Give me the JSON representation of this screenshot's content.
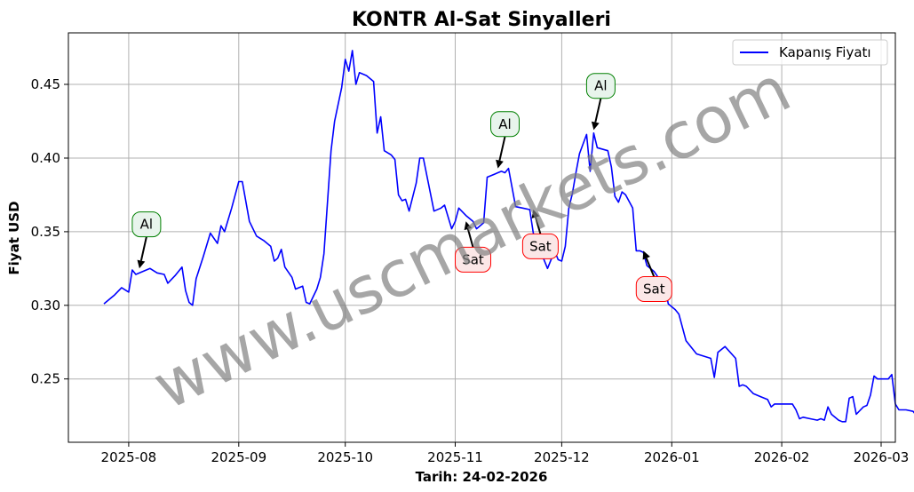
{
  "chart_data": {
    "type": "line",
    "title": "KONTR Al-Sat Sinyalleri",
    "xlabel": "Tarih: 24-02-2026",
    "ylabel": "Fiyat USD",
    "legend": {
      "position": "top-right",
      "entries": [
        "Kapanış Fiyatı"
      ]
    },
    "grid": true,
    "xlim": [
      "2025-07-15",
      "2026-03-05"
    ],
    "ylim": [
      0.207,
      0.485
    ],
    "x_ticks": [
      "2025-08-01",
      "2025-09-01",
      "2025-10-01",
      "2025-11-01",
      "2025-12-01",
      "2026-01-01",
      "2026-02-01",
      "2026-03-01"
    ],
    "x_tick_labels": [
      "2025-08",
      "2025-09",
      "2025-10",
      "2025-11",
      "2025-12",
      "2026-01",
      "2026-02",
      "2026-03"
    ],
    "y_ticks": [
      0.25,
      0.3,
      0.35,
      0.4,
      0.45
    ],
    "y_tick_labels": [
      "0.25",
      "0.30",
      "0.35",
      "0.40",
      "0.45"
    ],
    "series": [
      {
        "name": "Kapanış Fiyatı",
        "color": "#0000ff",
        "points": [
          [
            "2025-07-25",
            0.301
          ],
          [
            "2025-07-28",
            0.307
          ],
          [
            "2025-07-30",
            0.312
          ],
          [
            "2025-08-01",
            0.309
          ],
          [
            "2025-08-02",
            0.324
          ],
          [
            "2025-08-03",
            0.321
          ],
          [
            "2025-08-05",
            0.323
          ],
          [
            "2025-08-07",
            0.325
          ],
          [
            "2025-08-09",
            0.322
          ],
          [
            "2025-08-11",
            0.321
          ],
          [
            "2025-08-12",
            0.315
          ],
          [
            "2025-08-14",
            0.32
          ],
          [
            "2025-08-16",
            0.326
          ],
          [
            "2025-08-17",
            0.31
          ],
          [
            "2025-08-18",
            0.302
          ],
          [
            "2025-08-19",
            0.3
          ],
          [
            "2025-08-20",
            0.318
          ],
          [
            "2025-08-22",
            0.333
          ],
          [
            "2025-08-24",
            0.349
          ],
          [
            "2025-08-26",
            0.342
          ],
          [
            "2025-08-27",
            0.354
          ],
          [
            "2025-08-28",
            0.35
          ],
          [
            "2025-08-30",
            0.366
          ],
          [
            "2025-09-01",
            0.384
          ],
          [
            "2025-09-02",
            0.384
          ],
          [
            "2025-09-04",
            0.357
          ],
          [
            "2025-09-06",
            0.347
          ],
          [
            "2025-09-08",
            0.344
          ],
          [
            "2025-09-10",
            0.34
          ],
          [
            "2025-09-11",
            0.33
          ],
          [
            "2025-09-12",
            0.332
          ],
          [
            "2025-09-13",
            0.338
          ],
          [
            "2025-09-14",
            0.326
          ],
          [
            "2025-09-16",
            0.319
          ],
          [
            "2025-09-17",
            0.311
          ],
          [
            "2025-09-19",
            0.313
          ],
          [
            "2025-09-20",
            0.302
          ],
          [
            "2025-09-21",
            0.301
          ],
          [
            "2025-09-23",
            0.311
          ],
          [
            "2025-09-24",
            0.319
          ],
          [
            "2025-09-25",
            0.335
          ],
          [
            "2025-09-27",
            0.405
          ],
          [
            "2025-09-28",
            0.425
          ],
          [
            "2025-09-30",
            0.448
          ],
          [
            "2025-10-01",
            0.467
          ],
          [
            "2025-10-02",
            0.459
          ],
          [
            "2025-10-03",
            0.473
          ],
          [
            "2025-10-04",
            0.45
          ],
          [
            "2025-10-05",
            0.458
          ],
          [
            "2025-10-07",
            0.456
          ],
          [
            "2025-10-09",
            0.452
          ],
          [
            "2025-10-10",
            0.417
          ],
          [
            "2025-10-11",
            0.428
          ],
          [
            "2025-10-12",
            0.405
          ],
          [
            "2025-10-14",
            0.402
          ],
          [
            "2025-10-15",
            0.399
          ],
          [
            "2025-10-16",
            0.375
          ],
          [
            "2025-10-17",
            0.371
          ],
          [
            "2025-10-18",
            0.372
          ],
          [
            "2025-10-19",
            0.364
          ],
          [
            "2025-10-21",
            0.383
          ],
          [
            "2025-10-22",
            0.4
          ],
          [
            "2025-10-23",
            0.4
          ],
          [
            "2025-10-24",
            0.388
          ],
          [
            "2025-10-26",
            0.364
          ],
          [
            "2025-10-28",
            0.366
          ],
          [
            "2025-10-29",
            0.368
          ],
          [
            "2025-10-31",
            0.352
          ],
          [
            "2025-11-01",
            0.357
          ],
          [
            "2025-11-02",
            0.366
          ],
          [
            "2025-11-04",
            0.361
          ],
          [
            "2025-11-06",
            0.357
          ],
          [
            "2025-11-07",
            0.352
          ],
          [
            "2025-11-09",
            0.356
          ],
          [
            "2025-11-10",
            0.387
          ],
          [
            "2025-11-12",
            0.389
          ],
          [
            "2025-11-13",
            0.39
          ],
          [
            "2025-11-14",
            0.391
          ],
          [
            "2025-11-15",
            0.39
          ],
          [
            "2025-11-16",
            0.393
          ],
          [
            "2025-11-17",
            0.38
          ],
          [
            "2025-11-18",
            0.367
          ],
          [
            "2025-11-20",
            0.366
          ],
          [
            "2025-11-22",
            0.365
          ],
          [
            "2025-11-23",
            0.349
          ],
          [
            "2025-11-24",
            0.344
          ],
          [
            "2025-11-25",
            0.337
          ],
          [
            "2025-11-27",
            0.325
          ],
          [
            "2025-11-28",
            0.331
          ],
          [
            "2025-11-29",
            0.337
          ],
          [
            "2025-11-30",
            0.331
          ],
          [
            "2025-12-01",
            0.33
          ],
          [
            "2025-12-02",
            0.34
          ],
          [
            "2025-12-03",
            0.366
          ],
          [
            "2025-12-04",
            0.376
          ],
          [
            "2025-12-05",
            0.39
          ],
          [
            "2025-12-06",
            0.403
          ],
          [
            "2025-12-08",
            0.416
          ],
          [
            "2025-12-09",
            0.391
          ],
          [
            "2025-12-10",
            0.417
          ],
          [
            "2025-12-11",
            0.407
          ],
          [
            "2025-12-14",
            0.405
          ],
          [
            "2025-12-15",
            0.394
          ],
          [
            "2025-12-16",
            0.374
          ],
          [
            "2025-12-17",
            0.37
          ],
          [
            "2025-12-18",
            0.377
          ],
          [
            "2025-12-19",
            0.375
          ],
          [
            "2025-12-21",
            0.366
          ],
          [
            "2025-12-22",
            0.337
          ],
          [
            "2025-12-23",
            0.337
          ],
          [
            "2025-12-24",
            0.336
          ],
          [
            "2025-12-25",
            0.327
          ],
          [
            "2025-12-27",
            0.323
          ],
          [
            "2025-12-29",
            0.316
          ],
          [
            "2025-12-30",
            0.315
          ],
          [
            "2025-12-31",
            0.301
          ],
          [
            "2026-01-02",
            0.297
          ],
          [
            "2026-01-03",
            0.294
          ],
          [
            "2026-01-05",
            0.276
          ],
          [
            "2026-01-08",
            0.267
          ],
          [
            "2026-01-12",
            0.264
          ],
          [
            "2026-01-13",
            0.251
          ],
          [
            "2026-01-14",
            0.268
          ],
          [
            "2026-01-16",
            0.272
          ],
          [
            "2026-01-19",
            0.264
          ],
          [
            "2026-01-20",
            0.245
          ],
          [
            "2026-01-21",
            0.246
          ],
          [
            "2026-01-22",
            0.245
          ],
          [
            "2026-01-24",
            0.24
          ],
          [
            "2026-01-26",
            0.238
          ],
          [
            "2026-01-28",
            0.236
          ],
          [
            "2026-01-29",
            0.231
          ],
          [
            "2026-01-30",
            0.233
          ],
          [
            "2026-01-31",
            0.233
          ],
          [
            "2026-02-02",
            0.233
          ],
          [
            "2026-02-04",
            0.233
          ],
          [
            "2026-02-05",
            0.229
          ],
          [
            "2026-02-06",
            0.223
          ],
          [
            "2026-02-07",
            0.224
          ],
          [
            "2026-02-09",
            0.223
          ],
          [
            "2026-02-11",
            0.222
          ],
          [
            "2026-02-12",
            0.223
          ],
          [
            "2026-02-13",
            0.222
          ],
          [
            "2026-02-14",
            0.231
          ],
          [
            "2026-02-15",
            0.226
          ],
          [
            "2026-02-17",
            0.222
          ],
          [
            "2026-02-18",
            0.221
          ],
          [
            "2026-02-19",
            0.221
          ],
          [
            "2026-02-20",
            0.237
          ],
          [
            "2026-02-21",
            0.238
          ],
          [
            "2026-02-22",
            0.226
          ],
          [
            "2026-02-24",
            0.231
          ],
          [
            "2026-02-25",
            0.232
          ],
          [
            "2026-02-26",
            0.239
          ],
          [
            "2026-02-27",
            0.252
          ],
          [
            "2026-02-28",
            0.25
          ],
          [
            "2026-03-01",
            0.25
          ],
          [
            "2026-03-03",
            0.25
          ],
          [
            "2026-03-04",
            0.253
          ],
          [
            "2026-03-05",
            0.233
          ],
          [
            "2026-03-06",
            0.229
          ],
          [
            "2026-03-08",
            0.229
          ],
          [
            "2026-03-10",
            0.228
          ],
          [
            "2026-03-11",
            0.225
          ]
        ]
      }
    ],
    "annotations": [
      {
        "text": "Al",
        "kind": "buy",
        "point": [
          "2025-08-04",
          0.325
        ],
        "label": [
          "2025-08-06",
          0.355
        ]
      },
      {
        "text": "Sat",
        "kind": "sell",
        "point": [
          "2025-11-04",
          0.357
        ],
        "label": [
          "2025-11-06",
          0.331
        ]
      },
      {
        "text": "Al",
        "kind": "buy",
        "point": [
          "2025-11-13",
          0.393
        ],
        "label": [
          "2025-11-15",
          0.423
        ]
      },
      {
        "text": "Sat",
        "kind": "sell",
        "point": [
          "2025-11-23",
          0.365
        ],
        "label": [
          "2025-11-25",
          0.34
        ]
      },
      {
        "text": "Al",
        "kind": "buy",
        "point": [
          "2025-12-10",
          0.419
        ],
        "label": [
          "2025-12-12",
          0.449
        ]
      },
      {
        "text": "Sat",
        "kind": "sell",
        "point": [
          "2025-12-24",
          0.337
        ],
        "label": [
          "2025-12-27",
          0.311
        ]
      }
    ],
    "colors": {
      "line": "#0000ff",
      "buy_edge": "#008000",
      "buy_fill": "#e8f4ec",
      "sell_edge": "#ff0000",
      "sell_fill": "#fbe7e7",
      "grid": "#b0b0b0",
      "watermark": "#808080"
    },
    "watermark": "www.uscmarkets.com"
  }
}
